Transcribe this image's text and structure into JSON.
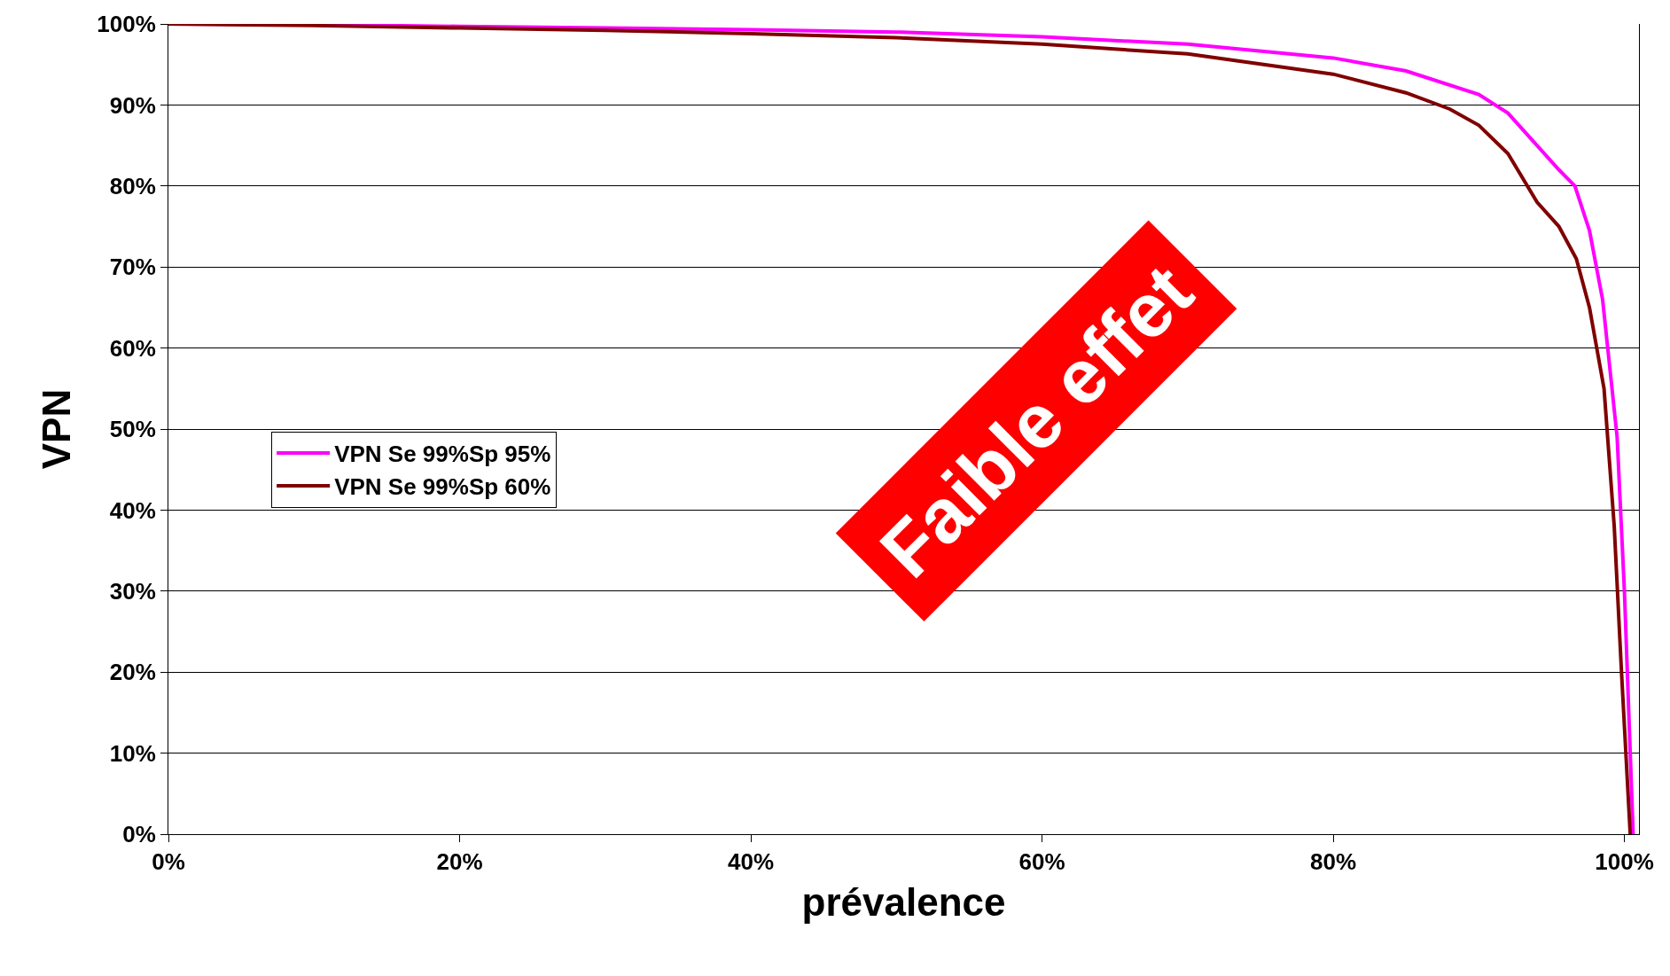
{
  "chart_data": {
    "type": "line",
    "xlabel": "prévalence",
    "ylabel": "VPN",
    "xlim": [
      0,
      101
    ],
    "xticks": [
      {
        "value": 0,
        "label": "0%"
      },
      {
        "value": 20,
        "label": "20%"
      },
      {
        "value": 40,
        "label": "40%"
      },
      {
        "value": 60,
        "label": "60%"
      },
      {
        "value": 80,
        "label": "80%"
      },
      {
        "value": 100,
        "label": "100%"
      }
    ],
    "ylim": [
      0,
      100
    ],
    "yticks": [
      {
        "value": 0,
        "label": "0%"
      },
      {
        "value": 10,
        "label": "10%"
      },
      {
        "value": 20,
        "label": "20%"
      },
      {
        "value": 30,
        "label": "30%"
      },
      {
        "value": 40,
        "label": "40%"
      },
      {
        "value": 50,
        "label": "50%"
      },
      {
        "value": 60,
        "label": "60%"
      },
      {
        "value": 70,
        "label": "70%"
      },
      {
        "value": 80,
        "label": "80%"
      },
      {
        "value": 90,
        "label": "90%"
      },
      {
        "value": 100,
        "label": "100%"
      }
    ],
    "grid": "y",
    "legend": "left",
    "marker": "none",
    "line_style": "solid",
    "annotations": [
      "Faible effet"
    ],
    "series": [
      {
        "name": "VPN Se 99%Sp 95%",
        "color": "#ff00ff",
        "x": [
          0,
          10,
          20,
          30,
          40,
          50,
          60,
          70,
          80,
          85,
          90,
          92,
          94,
          95.5,
          96.6,
          97.6,
          98.5,
          99.5,
          100,
          100.6
        ],
        "values": [
          100,
          99.9,
          99.7,
          99.5,
          99.3,
          99.0,
          98.4,
          97.5,
          95.8,
          94.2,
          91.3,
          89,
          85,
          82,
          80,
          74.5,
          66,
          49,
          30,
          0
        ]
      },
      {
        "name": "VPN Se 99%Sp 60%",
        "color": "#800000",
        "x": [
          0,
          10,
          20,
          30,
          40,
          50,
          60,
          70,
          80,
          85,
          88,
          90,
          92,
          94,
          95.5,
          96.7,
          97.6,
          98.6,
          99.3,
          99.8,
          100.4
        ],
        "values": [
          100,
          99.8,
          99.5,
          99.2,
          98.8,
          98.3,
          97.5,
          96.3,
          93.8,
          91.5,
          89.5,
          87.5,
          84,
          78,
          75,
          71,
          65,
          55,
          38,
          20,
          0
        ]
      }
    ]
  }
}
